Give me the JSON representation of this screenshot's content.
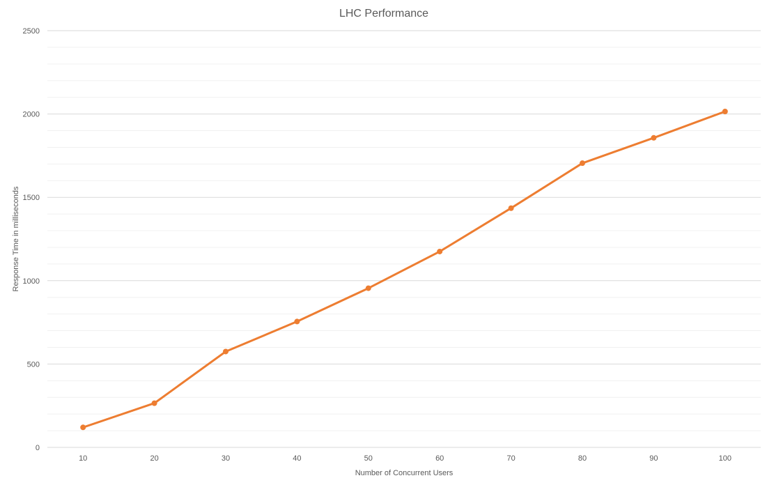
{
  "chart_data": {
    "type": "line",
    "title": "LHC Performance",
    "xlabel": "Number of Concurrent Users",
    "ylabel": "Response Time in milliseconds",
    "categories": [
      "10",
      "20",
      "30",
      "40",
      "50",
      "60",
      "70",
      "80",
      "90",
      "100"
    ],
    "series": [
      {
        "values": [
          120,
          265,
          575,
          755,
          955,
          1175,
          1435,
          1705,
          1857,
          2015
        ],
        "color": "#ED7D31",
        "marker": "circle"
      }
    ],
    "ylim": [
      0,
      2500
    ],
    "yticks": [
      0,
      500,
      1000,
      1500,
      2000,
      2500
    ],
    "y_tick_labels": [
      "0",
      "500",
      "1000",
      "1500",
      "2000",
      "2500"
    ],
    "minor_gridlines": true,
    "grid": true,
    "legend": "none",
    "colors": {
      "major_grid": "#d9d9d9",
      "minor_grid": "#f0f0f0",
      "text": "#595959"
    }
  }
}
